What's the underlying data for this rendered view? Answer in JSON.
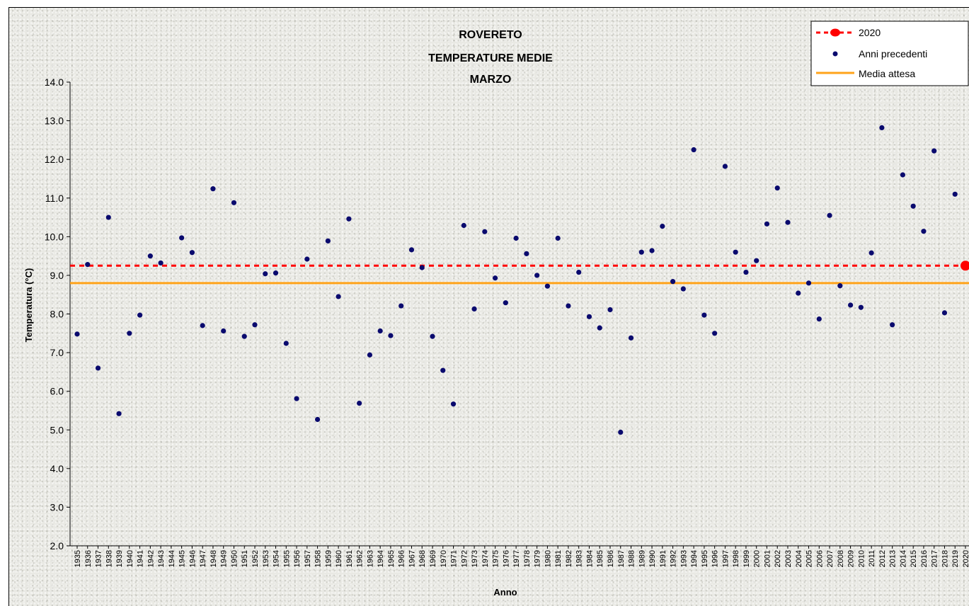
{
  "chart_data": {
    "type": "scatter",
    "title_lines": [
      "ROVERETO",
      "TEMPERATURE MEDIE",
      "MARZO"
    ],
    "xlabel": "Anno",
    "ylabel": "Temperatura (°C)",
    "ylim": [
      2.0,
      14.0
    ],
    "y_ticks": [
      "2.0",
      "3.0",
      "4.0",
      "5.0",
      "6.0",
      "7.0",
      "8.0",
      "9.0",
      "10.0",
      "11.0",
      "12.0",
      "13.0",
      "14.0"
    ],
    "x_categories": [
      "1935",
      "1936",
      "1937",
      "1938",
      "1939",
      "1940",
      "1941",
      "1942",
      "1943",
      "1944",
      "1945",
      "1946",
      "1947",
      "1948",
      "1949",
      "1950",
      "1951",
      "1952",
      "1953",
      "1954",
      "1955",
      "1956",
      "1957",
      "1958",
      "1959",
      "1960",
      "1961",
      "1962",
      "1963",
      "1964",
      "1965",
      "1966",
      "1967",
      "1968",
      "1969",
      "1970",
      "1971",
      "1972",
      "1973",
      "1974",
      "1975",
      "1976",
      "1977",
      "1978",
      "1979",
      "1980",
      "1981",
      "1982",
      "1983",
      "1984",
      "1985",
      "1986",
      "1987",
      "1988",
      "1989",
      "1990",
      "1991",
      "1992",
      "1993",
      "1994",
      "1995",
      "1996",
      "1997",
      "1998",
      "1999",
      "2000",
      "2001",
      "2002",
      "2003",
      "2004",
      "2005",
      "2006",
      "2007",
      "2008",
      "2009",
      "2010",
      "2011",
      "2012",
      "2013",
      "2014",
      "2015",
      "2016",
      "2017",
      "2018",
      "2019",
      "2020"
    ],
    "series": [
      {
        "name": "2020",
        "kind": "hline-marker",
        "color": "#ff0000",
        "value": 9.25,
        "point": {
          "x": "2020",
          "y": 9.25
        }
      },
      {
        "name": "Anni precedenti",
        "kind": "points",
        "color": "#0a0a6e",
        "points": [
          {
            "x": "1935",
            "y": 7.48
          },
          {
            "x": "1936",
            "y": 9.28
          },
          {
            "x": "1937",
            "y": 6.6
          },
          {
            "x": "1938",
            "y": 10.5
          },
          {
            "x": "1939",
            "y": 5.42
          },
          {
            "x": "1940",
            "y": 7.5
          },
          {
            "x": "1941",
            "y": 7.97
          },
          {
            "x": "1942",
            "y": 9.5
          },
          {
            "x": "1943",
            "y": 9.32
          },
          {
            "x": "1945",
            "y": 9.97
          },
          {
            "x": "1946",
            "y": 9.59
          },
          {
            "x": "1947",
            "y": 7.7
          },
          {
            "x": "1948",
            "y": 11.24
          },
          {
            "x": "1949",
            "y": 7.56
          },
          {
            "x": "1950",
            "y": 10.88
          },
          {
            "x": "1951",
            "y": 7.42
          },
          {
            "x": "1952",
            "y": 7.72
          },
          {
            "x": "1953",
            "y": 9.04
          },
          {
            "x": "1954",
            "y": 9.06
          },
          {
            "x": "1955",
            "y": 7.24
          },
          {
            "x": "1956",
            "y": 5.81
          },
          {
            "x": "1957",
            "y": 9.42
          },
          {
            "x": "1958",
            "y": 5.27
          },
          {
            "x": "1959",
            "y": 9.89
          },
          {
            "x": "1960",
            "y": 8.45
          },
          {
            "x": "1961",
            "y": 10.46
          },
          {
            "x": "1962",
            "y": 5.69
          },
          {
            "x": "1963",
            "y": 6.94
          },
          {
            "x": "1964",
            "y": 7.56
          },
          {
            "x": "1965",
            "y": 7.44
          },
          {
            "x": "1966",
            "y": 8.21
          },
          {
            "x": "1967",
            "y": 9.66
          },
          {
            "x": "1968",
            "y": 9.2
          },
          {
            "x": "1969",
            "y": 7.42
          },
          {
            "x": "1970",
            "y": 6.54
          },
          {
            "x": "1971",
            "y": 5.67
          },
          {
            "x": "1972",
            "y": 10.29
          },
          {
            "x": "1973",
            "y": 8.13
          },
          {
            "x": "1974",
            "y": 10.13
          },
          {
            "x": "1975",
            "y": 8.93
          },
          {
            "x": "1976",
            "y": 8.29
          },
          {
            "x": "1977",
            "y": 9.96
          },
          {
            "x": "1978",
            "y": 9.56
          },
          {
            "x": "1979",
            "y": 9.0
          },
          {
            "x": "1980",
            "y": 8.72
          },
          {
            "x": "1981",
            "y": 9.96
          },
          {
            "x": "1982",
            "y": 8.21
          },
          {
            "x": "1983",
            "y": 9.08
          },
          {
            "x": "1984",
            "y": 7.93
          },
          {
            "x": "1985",
            "y": 7.64
          },
          {
            "x": "1986",
            "y": 8.11
          },
          {
            "x": "1987",
            "y": 4.94
          },
          {
            "x": "1988",
            "y": 7.38
          },
          {
            "x": "1989",
            "y": 9.6
          },
          {
            "x": "1990",
            "y": 9.64
          },
          {
            "x": "1991",
            "y": 10.27
          },
          {
            "x": "1992",
            "y": 8.84
          },
          {
            "x": "1993",
            "y": 8.65
          },
          {
            "x": "1994",
            "y": 12.25
          },
          {
            "x": "1995",
            "y": 7.97
          },
          {
            "x": "1996",
            "y": 7.5
          },
          {
            "x": "1997",
            "y": 11.82
          },
          {
            "x": "1998",
            "y": 9.6
          },
          {
            "x": "1999",
            "y": 9.08
          },
          {
            "x": "2000",
            "y": 9.38
          },
          {
            "x": "2001",
            "y": 10.33
          },
          {
            "x": "2002",
            "y": 11.26
          },
          {
            "x": "2003",
            "y": 10.37
          },
          {
            "x": "2004",
            "y": 8.54
          },
          {
            "x": "2005",
            "y": 8.8
          },
          {
            "x": "2006",
            "y": 7.87
          },
          {
            "x": "2007",
            "y": 10.55
          },
          {
            "x": "2008",
            "y": 8.73
          },
          {
            "x": "2009",
            "y": 8.23
          },
          {
            "x": "2010",
            "y": 8.17
          },
          {
            "x": "2011",
            "y": 9.58
          },
          {
            "x": "2012",
            "y": 12.82
          },
          {
            "x": "2013",
            "y": 7.72
          },
          {
            "x": "2014",
            "y": 11.6
          },
          {
            "x": "2015",
            "y": 10.79
          },
          {
            "x": "2016",
            "y": 10.14
          },
          {
            "x": "2017",
            "y": 12.22
          },
          {
            "x": "2018",
            "y": 8.03
          },
          {
            "x": "2019",
            "y": 11.1
          }
        ]
      },
      {
        "name": "Media attesa",
        "kind": "hline",
        "color": "#ffa31a",
        "value": 8.8
      }
    ],
    "legend_placement": "top-right",
    "grid": false
  }
}
